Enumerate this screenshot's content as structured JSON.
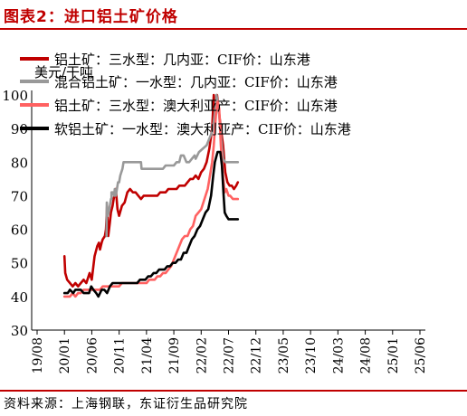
{
  "title": "图表2：进口铝土矿价格",
  "source": "资料来源：上海钢联，东证衍生品研究院",
  "chart_data": {
    "type": "line",
    "ylabel": "美元/干吨",
    "ylim": [
      30,
      100
    ],
    "yticks": [
      30,
      40,
      50,
      60,
      70,
      80,
      90,
      100
    ],
    "xticks": [
      "19/08",
      "20/01",
      "20/06",
      "20/11",
      "21/04",
      "21/09",
      "22/02",
      "22/07",
      "22/12",
      "23/05",
      "23/10",
      "24/03",
      "24/08",
      "25/01",
      "25/06"
    ],
    "grid": false,
    "legend": "top-left",
    "series": [
      {
        "name": "铝土矿：三水型：几内亚：CIF价：山东港",
        "color": "#c00000",
        "width": 2.6,
        "points": [
          [
            5.0,
            52
          ],
          [
            5.15,
            47
          ],
          [
            5.5,
            45
          ],
          [
            6.0,
            44
          ],
          [
            6.5,
            43
          ],
          [
            7.0,
            44
          ],
          [
            7.5,
            43
          ],
          [
            8.0,
            44
          ],
          [
            8.5,
            45
          ],
          [
            9.0,
            44
          ],
          [
            9.6,
            47
          ],
          [
            10.0,
            45
          ],
          [
            10.5,
            52
          ],
          [
            11.0,
            55
          ],
          [
            11.3,
            56
          ],
          [
            11.5,
            54
          ],
          [
            11.8,
            56
          ],
          [
            12.0,
            57
          ],
          [
            12.4,
            58
          ],
          [
            12.6,
            60
          ],
          [
            12.8,
            67
          ],
          [
            13.0,
            58
          ],
          [
            13.3,
            62
          ],
          [
            13.5,
            65
          ],
          [
            13.8,
            67
          ],
          [
            14.0,
            69
          ],
          [
            14.4,
            72
          ],
          [
            14.7,
            66
          ],
          [
            15.0,
            64
          ],
          [
            15.5,
            67
          ],
          [
            16.0,
            68
          ],
          [
            16.5,
            71
          ],
          [
            17.0,
            72
          ],
          [
            17.5,
            71
          ],
          [
            18.0,
            71
          ],
          [
            18.5,
            70
          ],
          [
            19.0,
            69
          ],
          [
            19.5,
            70
          ],
          [
            20.0,
            70
          ],
          [
            20.5,
            70
          ],
          [
            21.0,
            70
          ],
          [
            21.5,
            70
          ],
          [
            22.0,
            70
          ],
          [
            22.5,
            71
          ],
          [
            23.0,
            71
          ],
          [
            23.5,
            71
          ],
          [
            24.0,
            72
          ],
          [
            24.5,
            72
          ],
          [
            25.0,
            72
          ],
          [
            25.5,
            72
          ],
          [
            26.0,
            73
          ],
          [
            26.5,
            73
          ],
          [
            27.0,
            73
          ],
          [
            27.5,
            74
          ],
          [
            28.0,
            75
          ],
          [
            28.5,
            75
          ],
          [
            29.0,
            76
          ],
          [
            29.5,
            75
          ],
          [
            30.0,
            77
          ],
          [
            30.5,
            78
          ],
          [
            31.0,
            80
          ],
          [
            31.5,
            84
          ],
          [
            32.0,
            90
          ],
          [
            32.3,
            100
          ],
          [
            32.6,
            95
          ],
          [
            32.9,
            100
          ],
          [
            33.2,
            96
          ],
          [
            33.6,
            90
          ],
          [
            34.0,
            85
          ],
          [
            34.4,
            77
          ],
          [
            34.8,
            74
          ],
          [
            35.2,
            73
          ],
          [
            35.6,
            73
          ],
          [
            36.0,
            72
          ],
          [
            36.4,
            73
          ],
          [
            36.7,
            74
          ]
        ]
      },
      {
        "name": "混合铝土矿：一水型：几内亚：CIF价：山东港",
        "color": "#999999",
        "width": 2.6,
        "points": [
          [
            12.7,
            58
          ],
          [
            12.75,
            68
          ],
          [
            12.9,
            64
          ],
          [
            13.1,
            65
          ],
          [
            13.3,
            67
          ],
          [
            13.5,
            69
          ],
          [
            13.6,
            69
          ],
          [
            13.6,
            71
          ],
          [
            13.9,
            71
          ],
          [
            14.1,
            70
          ],
          [
            14.2,
            72
          ],
          [
            14.4,
            70
          ],
          [
            14.6,
            72
          ],
          [
            14.8,
            74
          ],
          [
            15.0,
            74
          ],
          [
            15.2,
            76
          ],
          [
            15.4,
            77
          ],
          [
            15.6,
            78
          ],
          [
            15.8,
            80
          ],
          [
            16.0,
            80
          ],
          [
            19.0,
            80
          ],
          [
            19.1,
            78
          ],
          [
            22.5,
            78
          ],
          [
            23.0,
            78
          ],
          [
            23.5,
            79
          ],
          [
            24.0,
            79
          ],
          [
            24.5,
            79
          ],
          [
            25.0,
            79
          ],
          [
            25.5,
            80
          ],
          [
            26.0,
            80
          ],
          [
            26.3,
            82
          ],
          [
            26.8,
            82
          ],
          [
            27.3,
            80
          ],
          [
            27.8,
            80
          ],
          [
            28.3,
            81
          ],
          [
            28.8,
            82
          ],
          [
            29.0,
            81
          ],
          [
            29.6,
            83
          ],
          [
            30.3,
            84
          ],
          [
            31.0,
            85
          ],
          [
            31.5,
            87
          ],
          [
            32.0,
            89
          ],
          [
            32.3,
            92
          ],
          [
            32.6,
            96
          ],
          [
            32.8,
            100
          ],
          [
            33.2,
            96
          ],
          [
            33.6,
            88
          ],
          [
            34.0,
            81
          ],
          [
            34.4,
            80
          ],
          [
            35.0,
            80
          ],
          [
            35.8,
            80
          ],
          [
            36.7,
            80
          ]
        ]
      },
      {
        "name": "铝土矿：三水型：澳大利亚产：CIF价：山东港",
        "color": "#ff6161",
        "width": 2.6,
        "points": [
          [
            5.0,
            40
          ],
          [
            5.5,
            40
          ],
          [
            6.0,
            40
          ],
          [
            6.5,
            41
          ],
          [
            7.0,
            40
          ],
          [
            7.5,
            41
          ],
          [
            8.0,
            41
          ],
          [
            8.5,
            42
          ],
          [
            9.0,
            42
          ],
          [
            9.5,
            42
          ],
          [
            10.0,
            42
          ],
          [
            10.5,
            42
          ],
          [
            11.0,
            42
          ],
          [
            11.5,
            42
          ],
          [
            12.0,
            43
          ],
          [
            12.5,
            43
          ],
          [
            13.0,
            43
          ],
          [
            13.5,
            43
          ],
          [
            14.0,
            43
          ],
          [
            14.5,
            43
          ],
          [
            15.0,
            43
          ],
          [
            15.5,
            44
          ],
          [
            16.0,
            44
          ],
          [
            16.5,
            44
          ],
          [
            17.0,
            44
          ],
          [
            17.5,
            44
          ],
          [
            18.0,
            44
          ],
          [
            18.5,
            44
          ],
          [
            19.0,
            44
          ],
          [
            19.5,
            44
          ],
          [
            20.0,
            44
          ],
          [
            20.5,
            45
          ],
          [
            21.0,
            45
          ],
          [
            21.5,
            45
          ],
          [
            22.0,
            46
          ],
          [
            22.5,
            46
          ],
          [
            23.0,
            47
          ],
          [
            23.5,
            47
          ],
          [
            24.0,
            48
          ],
          [
            24.5,
            49
          ],
          [
            25.0,
            51
          ],
          [
            25.5,
            53
          ],
          [
            26.0,
            55
          ],
          [
            26.5,
            57
          ],
          [
            27.0,
            58
          ],
          [
            27.5,
            58
          ],
          [
            28.0,
            60
          ],
          [
            28.5,
            61
          ],
          [
            29.0,
            64
          ],
          [
            29.5,
            65
          ],
          [
            30.0,
            66
          ],
          [
            30.4,
            68
          ],
          [
            30.8,
            70
          ],
          [
            31.2,
            72
          ],
          [
            31.6,
            76
          ],
          [
            32.0,
            80
          ],
          [
            32.3,
            85
          ],
          [
            32.7,
            94
          ],
          [
            33.0,
            98
          ],
          [
            33.3,
            96
          ],
          [
            33.6,
            85
          ],
          [
            33.9,
            77
          ],
          [
            34.3,
            71
          ],
          [
            34.6,
            72
          ],
          [
            35.0,
            70
          ],
          [
            35.3,
            70
          ],
          [
            35.8,
            69
          ],
          [
            36.7,
            69
          ]
        ]
      },
      {
        "name": "软铝土矿：一水型：澳大利亚产：CIF价：山东港",
        "color": "#000000",
        "width": 2.6,
        "points": [
          [
            5.0,
            41
          ],
          [
            5.6,
            41
          ],
          [
            6.0,
            42
          ],
          [
            6.6,
            41
          ],
          [
            7.0,
            42
          ],
          [
            7.5,
            42
          ],
          [
            8.0,
            42
          ],
          [
            8.5,
            41
          ],
          [
            9.0,
            41
          ],
          [
            9.5,
            41
          ],
          [
            9.9,
            43
          ],
          [
            10.3,
            42
          ],
          [
            10.8,
            41
          ],
          [
            11.2,
            40
          ],
          [
            11.8,
            42
          ],
          [
            12.3,
            42
          ],
          [
            12.8,
            41
          ],
          [
            13.3,
            43
          ],
          [
            13.8,
            44
          ],
          [
            14.3,
            44
          ],
          [
            14.8,
            44
          ],
          [
            15.3,
            44
          ],
          [
            15.8,
            44
          ],
          [
            16.3,
            44
          ],
          [
            16.8,
            44
          ],
          [
            17.3,
            44
          ],
          [
            17.8,
            44
          ],
          [
            18.3,
            44
          ],
          [
            18.8,
            45
          ],
          [
            19.3,
            45
          ],
          [
            19.8,
            45
          ],
          [
            20.3,
            46
          ],
          [
            20.8,
            46
          ],
          [
            21.3,
            47
          ],
          [
            21.8,
            47
          ],
          [
            22.3,
            48
          ],
          [
            22.8,
            48
          ],
          [
            23.3,
            48
          ],
          [
            23.8,
            49
          ],
          [
            24.3,
            49
          ],
          [
            24.8,
            50
          ],
          [
            25.3,
            50
          ],
          [
            25.8,
            51
          ],
          [
            26.3,
            51
          ],
          [
            26.8,
            53
          ],
          [
            27.3,
            53
          ],
          [
            27.8,
            55
          ],
          [
            28.3,
            57
          ],
          [
            28.8,
            58
          ],
          [
            29.3,
            60
          ],
          [
            29.8,
            61
          ],
          [
            30.3,
            63
          ],
          [
            30.8,
            65
          ],
          [
            31.3,
            66
          ],
          [
            31.8,
            70
          ],
          [
            32.2,
            76
          ],
          [
            32.5,
            80
          ],
          [
            33.0,
            83
          ],
          [
            33.5,
            83
          ],
          [
            33.8,
            79
          ],
          [
            34.1,
            70
          ],
          [
            34.3,
            65
          ],
          [
            34.6,
            64
          ],
          [
            35.0,
            63
          ],
          [
            35.5,
            63
          ],
          [
            36.0,
            63
          ],
          [
            36.7,
            63
          ]
        ]
      }
    ]
  }
}
